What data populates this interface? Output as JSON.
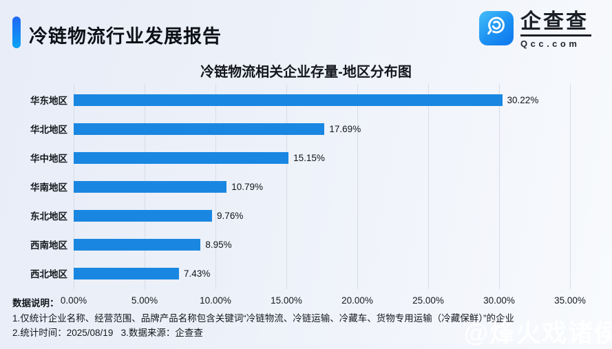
{
  "header": {
    "title": "冷链物流行业发展报告"
  },
  "logo": {
    "name_cn": "企查查",
    "name_en": "Qcc.com",
    "icon": "qcc-magnifier-icon"
  },
  "chart_data": {
    "type": "bar",
    "orientation": "horizontal",
    "title": "冷链物流相关企业存量-地区分布图",
    "categories": [
      "华东地区",
      "华北地区",
      "华中地区",
      "华南地区",
      "东北地区",
      "西南地区",
      "西北地区"
    ],
    "values": [
      30.22,
      17.69,
      15.15,
      10.79,
      9.76,
      8.95,
      7.43
    ],
    "value_labels": [
      "30.22%",
      "17.69%",
      "15.15%",
      "10.79%",
      "9.76%",
      "8.95%",
      "7.43%"
    ],
    "x_ticks": [
      "0.00%",
      "5.00%",
      "10.00%",
      "15.00%",
      "20.00%",
      "25.00%",
      "30.00%",
      "35.00%"
    ],
    "xlim": [
      0,
      35
    ],
    "xlabel": "",
    "ylabel": "",
    "grid": true,
    "legend": false,
    "bar_color": "#1987e1",
    "gridline_color": "#d6dce8"
  },
  "footer": {
    "label": "数据说明：",
    "note1": "1.仅统计企业名称、经营范围、品牌产品名称包含关键词“冷链物流、冷链运输、冷藏车、货物专用运输（冷藏保鲜）”的企业",
    "note2": "2.统计时间：2025/08/19   3.数据来源：企查查"
  },
  "watermark": "@烽火戏诸侯",
  "colors": {
    "accent_gradient_top": "#2166f4",
    "accent_gradient_bottom": "#0aa2f5",
    "bar": "#1987e1"
  }
}
